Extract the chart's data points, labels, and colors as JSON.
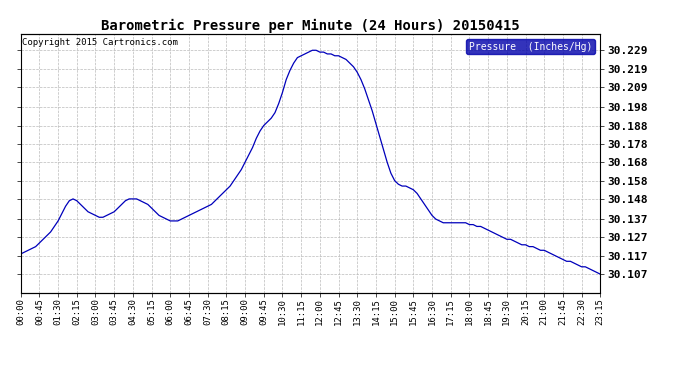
{
  "title": "Barometric Pressure per Minute (24 Hours) 20150415",
  "copyright": "Copyright 2015 Cartronics.com",
  "legend_label": "Pressure  (Inches/Hg)",
  "line_color": "#0000bb",
  "background_color": "#ffffff",
  "grid_color": "#bbbbbb",
  "yticks": [
    30.107,
    30.117,
    30.127,
    30.137,
    30.148,
    30.158,
    30.168,
    30.178,
    30.188,
    30.198,
    30.209,
    30.219,
    30.229
  ],
  "ylim": [
    30.097,
    30.238
  ],
  "xtick_labels": [
    "00:00",
    "00:45",
    "01:30",
    "02:15",
    "03:00",
    "03:45",
    "04:30",
    "05:15",
    "06:00",
    "06:45",
    "07:30",
    "08:15",
    "09:00",
    "09:45",
    "10:30",
    "11:15",
    "12:00",
    "12:45",
    "13:30",
    "14:15",
    "15:00",
    "15:45",
    "16:30",
    "17:15",
    "18:00",
    "18:45",
    "19:30",
    "20:15",
    "21:00",
    "21:45",
    "22:30",
    "23:15"
  ],
  "pressure_data": [
    30.118,
    30.119,
    30.12,
    30.121,
    30.122,
    30.124,
    30.126,
    30.128,
    30.13,
    30.133,
    30.136,
    30.14,
    30.144,
    30.147,
    30.148,
    30.147,
    30.145,
    30.143,
    30.141,
    30.14,
    30.139,
    30.138,
    30.138,
    30.139,
    30.14,
    30.141,
    30.143,
    30.145,
    30.147,
    30.148,
    30.148,
    30.148,
    30.147,
    30.146,
    30.145,
    30.143,
    30.141,
    30.139,
    30.138,
    30.137,
    30.136,
    30.136,
    30.136,
    30.137,
    30.138,
    30.139,
    30.14,
    30.141,
    30.142,
    30.143,
    30.144,
    30.145,
    30.147,
    30.149,
    30.151,
    30.153,
    30.155,
    30.158,
    30.161,
    30.164,
    30.168,
    30.172,
    30.176,
    30.181,
    30.185,
    30.188,
    30.19,
    30.192,
    30.195,
    30.2,
    30.206,
    30.213,
    30.218,
    30.222,
    30.225,
    30.226,
    30.227,
    30.228,
    30.229,
    30.229,
    30.228,
    30.228,
    30.227,
    30.227,
    30.226,
    30.226,
    30.225,
    30.224,
    30.222,
    30.22,
    30.217,
    30.213,
    30.208,
    30.202,
    30.196,
    30.189,
    30.182,
    30.175,
    30.168,
    30.162,
    30.158,
    30.156,
    30.155,
    30.155,
    30.154,
    30.153,
    30.151,
    30.148,
    30.145,
    30.142,
    30.139,
    30.137,
    30.136,
    30.135,
    30.135,
    30.135,
    30.135,
    30.135,
    30.135,
    30.135,
    30.134,
    30.134,
    30.133,
    30.133,
    30.132,
    30.131,
    30.13,
    30.129,
    30.128,
    30.127,
    30.126,
    30.126,
    30.125,
    30.124,
    30.123,
    30.123,
    30.122,
    30.122,
    30.121,
    30.12,
    30.12,
    30.119,
    30.118,
    30.117,
    30.116,
    30.115,
    30.114,
    30.114,
    30.113,
    30.112,
    30.111,
    30.111,
    30.11,
    30.109,
    30.108,
    30.107
  ]
}
